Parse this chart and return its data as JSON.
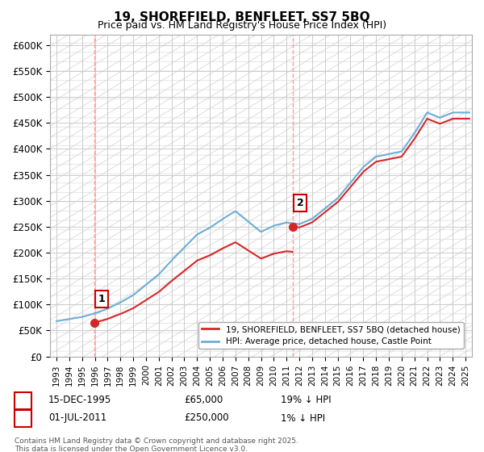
{
  "title": "19, SHOREFIELD, BENFLEET, SS7 5BQ",
  "subtitle": "Price paid vs. HM Land Registry's House Price Index (HPI)",
  "xlabel": "",
  "ylabel": "",
  "ylim": [
    0,
    620000
  ],
  "yticks": [
    0,
    50000,
    100000,
    150000,
    200000,
    250000,
    300000,
    350000,
    400000,
    450000,
    500000,
    550000,
    600000
  ],
  "ytick_labels": [
    "£0",
    "£50K",
    "£100K",
    "£150K",
    "£200K",
    "£250K",
    "£300K",
    "£350K",
    "£400K",
    "£450K",
    "£500K",
    "£550K",
    "£600K"
  ],
  "xlim_year": [
    1992.5,
    2025.5
  ],
  "xticks": [
    1993,
    1994,
    1995,
    1996,
    1997,
    1998,
    1999,
    2000,
    2001,
    2002,
    2003,
    2004,
    2005,
    2006,
    2007,
    2008,
    2009,
    2010,
    2011,
    2012,
    2013,
    2014,
    2015,
    2016,
    2017,
    2018,
    2019,
    2020,
    2021,
    2022,
    2023,
    2024,
    2025
  ],
  "sale1_year": 1995.96,
  "sale1_price": 65000,
  "sale1_label": "1",
  "sale1_date": "15-DEC-1995",
  "sale2_year": 2011.5,
  "sale2_price": 250000,
  "sale2_label": "2",
  "sale2_date": "01-JUL-2011",
  "hpi_color": "#6baed6",
  "price_color": "#d62728",
  "legend_label1": "19, SHOREFIELD, BENFLEET, SS7 5BQ (detached house)",
  "legend_label2": "HPI: Average price, detached house, Castle Point",
  "annotation1": "15-DEC-1995     £65,000        19% ↓ HPI",
  "annotation2": "01-JUL-2011     £250,000       1% ↓ HPI",
  "footer": "Contains HM Land Registry data © Crown copyright and database right 2025.\nThis data is licensed under the Open Government Licence v3.0.",
  "background_hatch_color": "#e0e0e0",
  "grid_color": "#cccccc"
}
